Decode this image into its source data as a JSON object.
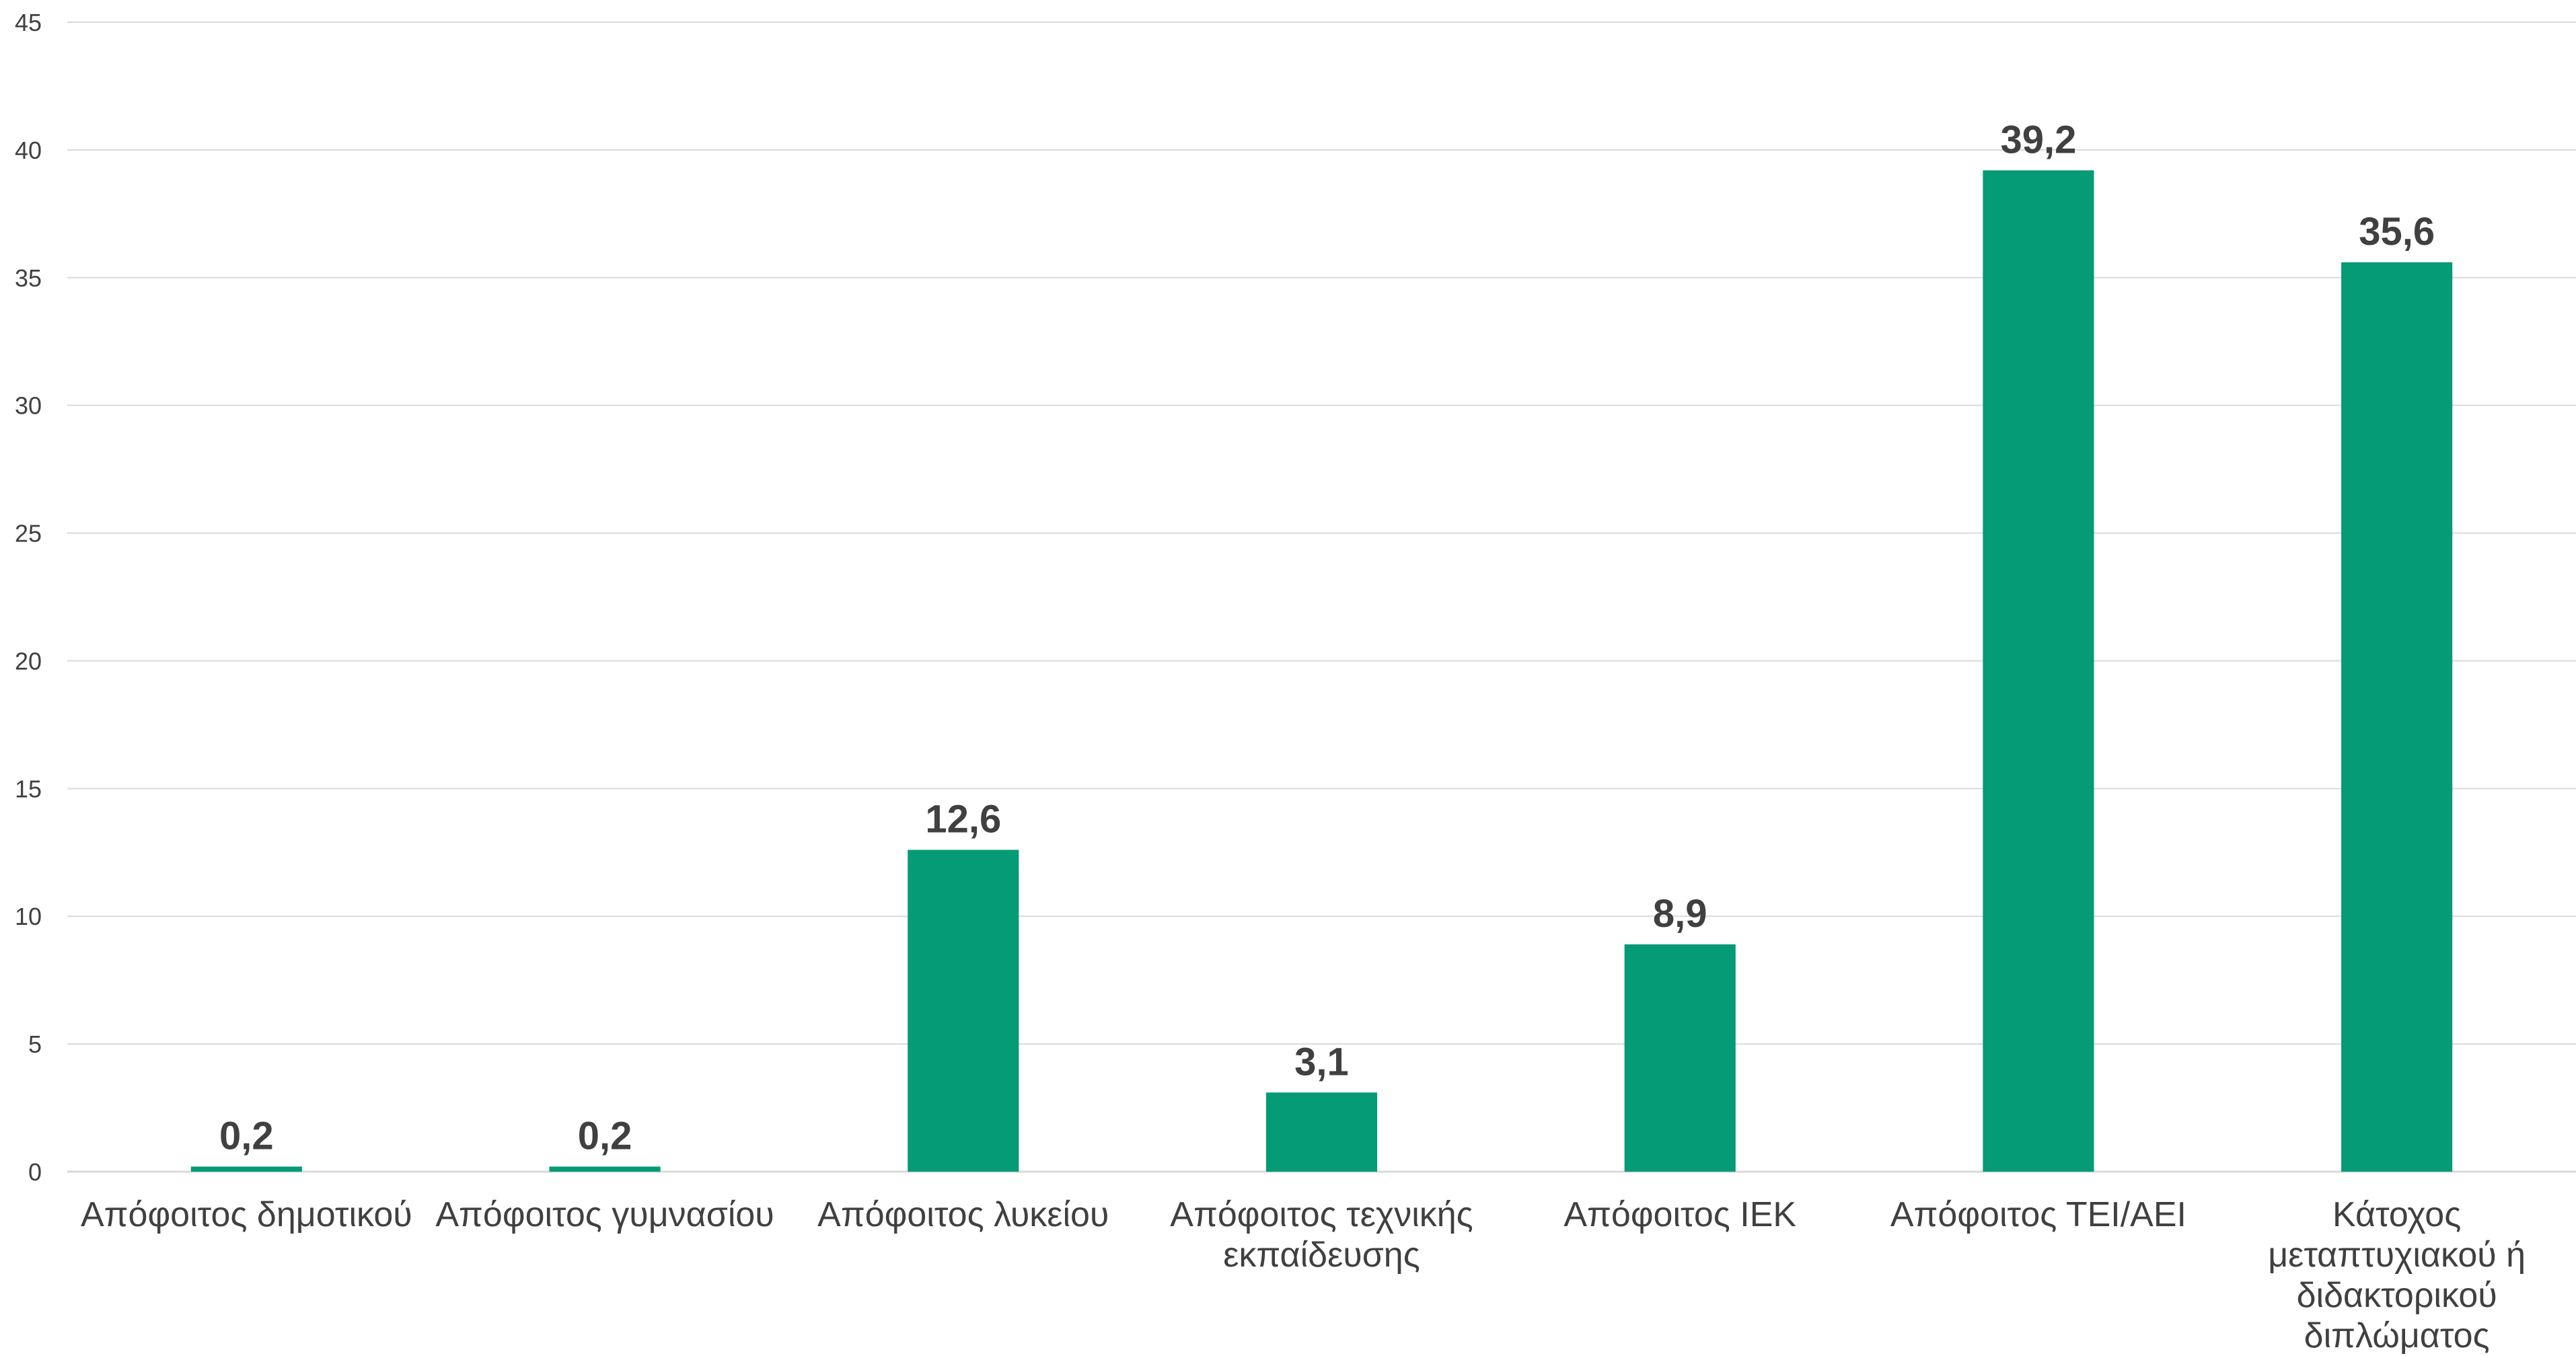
{
  "chart_data": {
    "type": "bar",
    "categories": [
      "Απόφοιτος δημοτικού",
      "Απόφοιτος γυμνασίου",
      "Απόφοιτος λυκείου",
      "Απόφοιτος τεχνικής εκπαίδευσης",
      "Απόφοιτος ΙΕΚ",
      "Απόφοιτος ΤΕΙ/ΑΕΙ",
      "Κάτοχος μεταπτυχιακού ή διδακτορικού διπλώματος"
    ],
    "category_lines": [
      [
        "Απόφοιτος δημοτικού"
      ],
      [
        "Απόφοιτος γυμνασίου"
      ],
      [
        "Απόφοιτος λυκείου"
      ],
      [
        "Απόφοιτος τεχνικής",
        "εκπαίδευσης"
      ],
      [
        "Απόφοιτος ΙΕΚ"
      ],
      [
        "Απόφοιτος ΤΕΙ/ΑΕΙ"
      ],
      [
        "Κάτοχος",
        "μεταπτυχιακού ή",
        "διδακτορικού",
        "διπλώματος"
      ]
    ],
    "values": [
      0.2,
      0.2,
      12.6,
      3.1,
      8.9,
      39.2,
      35.6
    ],
    "data_labels": [
      "0,2",
      "0,2",
      "12,6",
      "3,1",
      "8,9",
      "39,2",
      "35,6"
    ],
    "title": "",
    "xlabel": "",
    "ylabel": "",
    "ylim": [
      0,
      45
    ],
    "yticks": [
      0,
      5,
      10,
      15,
      20,
      25,
      30,
      35,
      40,
      45
    ],
    "grid": true,
    "legend": "none",
    "bar_color": "#049b76"
  }
}
